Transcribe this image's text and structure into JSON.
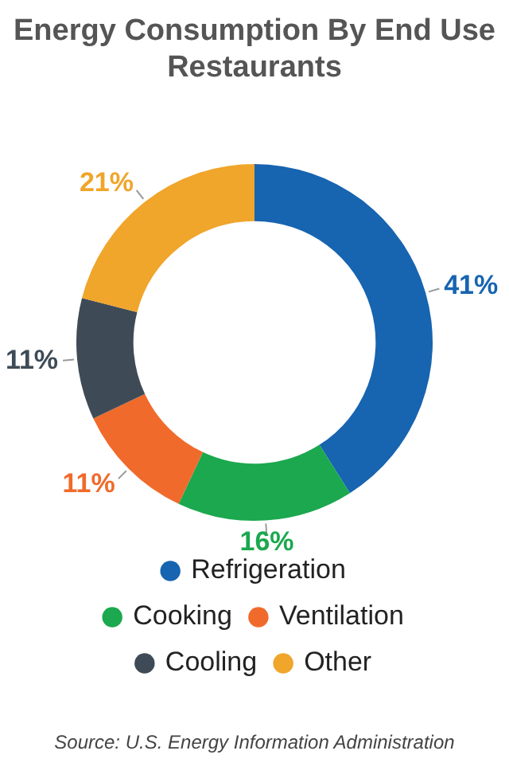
{
  "chart_data": {
    "type": "donut",
    "title": "Energy Consumption By End Use\nRestaurants",
    "categories": [
      "Refrigeration",
      "Cooking",
      "Ventilation",
      "Cooling",
      "Other"
    ],
    "values": [
      41,
      16,
      11,
      11,
      21
    ],
    "colors": [
      "#1764b0",
      "#1ba84e",
      "#f06a2b",
      "#3e4b56",
      "#f0a52b"
    ],
    "value_labels": [
      "41%",
      "16%",
      "11%",
      "11%",
      "21%"
    ],
    "legend": "bottom",
    "annotations": [
      "Source: U.S. Energy Information Administration"
    ]
  }
}
